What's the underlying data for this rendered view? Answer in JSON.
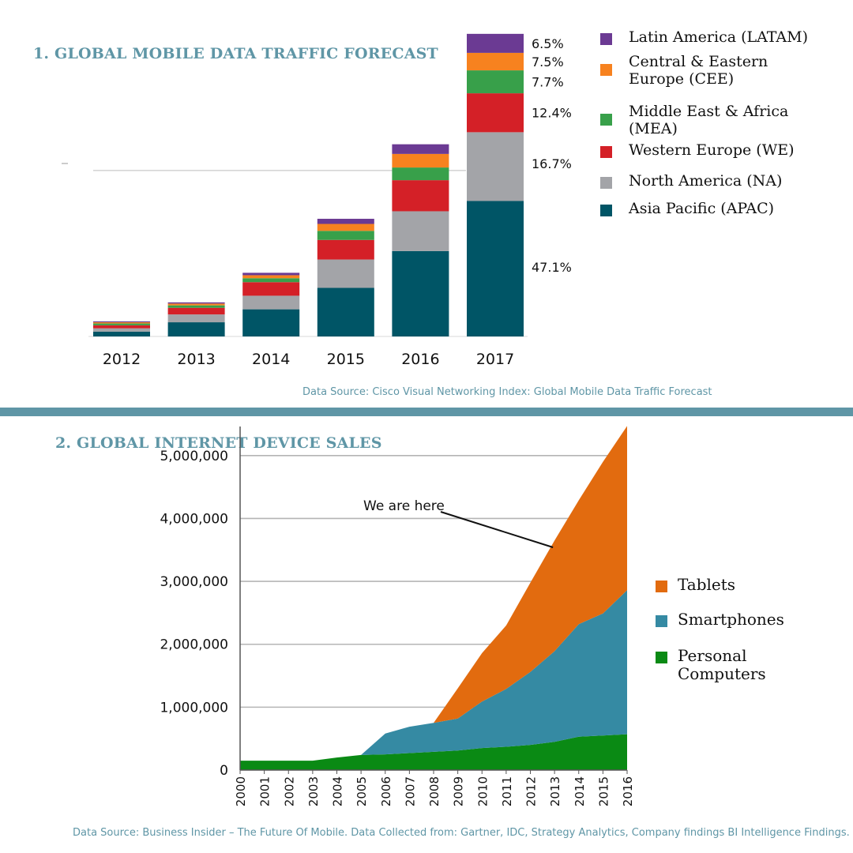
{
  "titles": {
    "chart1": "1. GLOBAL MOBILE DATA TRAFFIC FORECAST",
    "chart2": "2. GLOBAL INTERNET DEVICE SALES"
  },
  "sources": {
    "chart1": "Data Source: Cisco Visual Networking Index: Global Mobile Data Traffic Forecast",
    "chart2": "Data Source: Business Insider – The Future Of Mobile. Data Collected from: Gartner, IDC, Strategy Analytics, Company findings BI Intelligence Findings. p.6."
  },
  "chart_data": [
    {
      "type": "bar",
      "stacked": true,
      "title": "1. GLOBAL MOBILE DATA TRAFFIC FORECAST",
      "categories": [
        "2012",
        "2013",
        "2014",
        "2015",
        "2016",
        "2017"
      ],
      "ylim": [
        0,
        100
      ],
      "series": [
        {
          "name": "Asia Pacific (APAC)",
          "color": "#005566",
          "values": [
            1.6,
            4.7,
            9.0,
            16.1,
            28.3,
            44.9
          ]
        },
        {
          "name": "North America (NA)",
          "color": "#a3a4a8",
          "values": [
            1.1,
            2.6,
            4.5,
            9.4,
            13.2,
            22.8
          ]
        },
        {
          "name": "Western Europe (WE)",
          "color": "#d42027",
          "values": [
            1.0,
            2.2,
            4.5,
            6.5,
            10.3,
            12.9
          ]
        },
        {
          "name": "Middle East & Africa (MEA)",
          "color": "#38a04a",
          "values": [
            0.6,
            0.8,
            1.3,
            3.0,
            4.2,
            7.6
          ]
        },
        {
          "name": "Central & Eastern Europe (CEE)",
          "color": "#f7821f",
          "values": [
            0.4,
            0.6,
            1.0,
            2.3,
            4.5,
            5.8
          ]
        },
        {
          "name": "Latin America (LATAM)",
          "color": "#6b3a93",
          "values": [
            0.3,
            0.4,
            0.8,
            1.7,
            3.2,
            6.3
          ]
        }
      ],
      "data_labels": [
        {
          "text": "6.5%",
          "series": 5
        },
        {
          "text": "7.5%",
          "series": 4
        },
        {
          "text": "7.7%",
          "series": 3
        },
        {
          "text": "12.4%",
          "series": 2
        },
        {
          "text": "16.7%",
          "series": 1
        },
        {
          "text": "47.1%",
          "series": 0
        }
      ],
      "reference_line": 55,
      "legend": "right",
      "legend_order": [
        5,
        4,
        3,
        2,
        1,
        0
      ]
    },
    {
      "type": "area",
      "stacked": true,
      "title": "2. GLOBAL INTERNET DEVICE SALES",
      "x": [
        "2000",
        "2001",
        "2002",
        "2003",
        "2004",
        "2005",
        "2006",
        "2007",
        "2008",
        "2009",
        "2010",
        "2011",
        "2012",
        "2013",
        "2014",
        "2015",
        "2016"
      ],
      "ylim": [
        0,
        5400000
      ],
      "yticks": [
        0,
        1000000,
        2000000,
        3000000,
        4000000,
        5000000
      ],
      "ytick_labels": [
        "0",
        "1,000,000",
        "2,000,000",
        "3,000,000",
        "4,000,000",
        "5,000,000"
      ],
      "grid": true,
      "series": [
        {
          "name": "Personal Computers",
          "color": "#0a8a14",
          "values": [
            150000,
            150000,
            150000,
            150000,
            200000,
            240000,
            250000,
            270000,
            290000,
            310000,
            350000,
            370000,
            400000,
            450000,
            530000,
            550000,
            570000
          ]
        },
        {
          "name": "Smartphones",
          "color": "#358aa3",
          "values": [
            0,
            0,
            0,
            0,
            0,
            0,
            330000,
            420000,
            460000,
            510000,
            740000,
            920000,
            1160000,
            1440000,
            1790000,
            1940000,
            2290000
          ]
        },
        {
          "name": "Tablets",
          "color": "#e26b0f",
          "values": [
            0,
            0,
            0,
            0,
            0,
            0,
            0,
            0,
            0,
            480000,
            770000,
            1010000,
            1420000,
            1760000,
            1970000,
            2410000,
            2610000
          ]
        }
      ],
      "annotation": {
        "text": "We are here",
        "x": "2013"
      },
      "legend": "right",
      "legend_order": [
        2,
        1,
        0
      ]
    }
  ]
}
